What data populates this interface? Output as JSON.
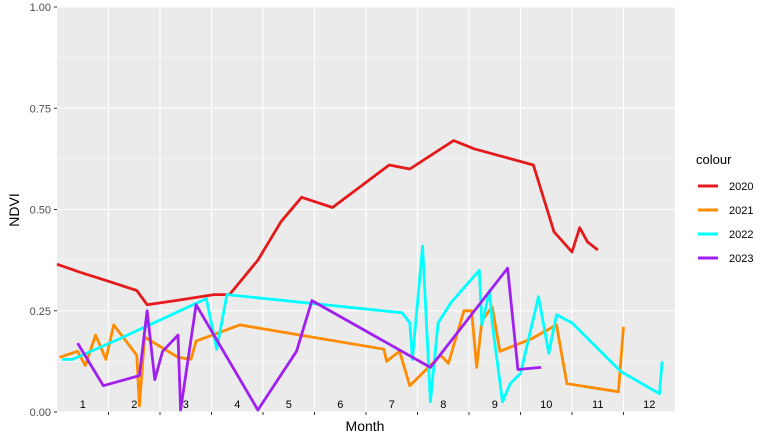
{
  "chart_data": {
    "type": "line",
    "xlabel": "Month",
    "ylabel": "NDVI",
    "xlim": [
      0,
      12
    ],
    "ylim": [
      0,
      1
    ],
    "y_ticks": [
      "0.00",
      "0.25",
      "0.50",
      "0.75",
      "1.00"
    ],
    "y_tick_values": [
      0,
      0.25,
      0.5,
      0.75,
      1.0
    ],
    "x_category_labels": [
      "1",
      "2",
      "3",
      "4",
      "5",
      "6",
      "7",
      "8",
      "9",
      "10",
      "11",
      "12"
    ],
    "grid": true,
    "background": "#EBEBEB",
    "legend": {
      "title": "colour",
      "position": "right"
    },
    "series": [
      {
        "name": "2020",
        "color": "#E41A1C",
        "points": [
          [
            0.0,
            0.365
          ],
          [
            0.45,
            0.345
          ],
          [
            0.95,
            0.325
          ],
          [
            1.55,
            0.3
          ],
          [
            1.75,
            0.265
          ],
          [
            2.3,
            0.275
          ],
          [
            3.05,
            0.29
          ],
          [
            3.35,
            0.29
          ],
          [
            3.9,
            0.375
          ],
          [
            4.35,
            0.47
          ],
          [
            4.75,
            0.53
          ],
          [
            5.35,
            0.505
          ],
          [
            6.45,
            0.61
          ],
          [
            6.85,
            0.6
          ],
          [
            7.7,
            0.67
          ],
          [
            8.1,
            0.65
          ],
          [
            9.25,
            0.61
          ],
          [
            9.65,
            0.445
          ],
          [
            10.0,
            0.395
          ],
          [
            10.15,
            0.455
          ],
          [
            10.3,
            0.42
          ],
          [
            10.5,
            0.4
          ]
        ]
      },
      {
        "name": "2021",
        "color": "#FF8C00",
        "points": [
          [
            0.05,
            0.135
          ],
          [
            0.4,
            0.15
          ],
          [
            0.55,
            0.115
          ],
          [
            0.75,
            0.19
          ],
          [
            0.95,
            0.13
          ],
          [
            1.1,
            0.215
          ],
          [
            1.55,
            0.14
          ],
          [
            1.6,
            0.015
          ],
          [
            1.7,
            0.185
          ],
          [
            2.35,
            0.135
          ],
          [
            2.6,
            0.13
          ],
          [
            2.7,
            0.175
          ],
          [
            3.55,
            0.215
          ],
          [
            6.35,
            0.155
          ],
          [
            6.4,
            0.125
          ],
          [
            6.65,
            0.15
          ],
          [
            6.85,
            0.065
          ],
          [
            7.45,
            0.14
          ],
          [
            7.6,
            0.12
          ],
          [
            7.9,
            0.25
          ],
          [
            8.05,
            0.25
          ],
          [
            8.15,
            0.11
          ],
          [
            8.25,
            0.225
          ],
          [
            8.45,
            0.26
          ],
          [
            8.6,
            0.15
          ],
          [
            9.2,
            0.18
          ],
          [
            9.7,
            0.215
          ],
          [
            9.9,
            0.07
          ],
          [
            10.9,
            0.05
          ],
          [
            11.0,
            0.21
          ]
        ]
      },
      {
        "name": "2022",
        "color": "#00FFFF",
        "points": [
          [
            0.1,
            0.13
          ],
          [
            0.3,
            0.13
          ],
          [
            1.2,
            0.18
          ],
          [
            2.9,
            0.28
          ],
          [
            3.1,
            0.155
          ],
          [
            3.3,
            0.29
          ],
          [
            6.7,
            0.245
          ],
          [
            6.85,
            0.22
          ],
          [
            6.9,
            0.13
          ],
          [
            7.1,
            0.41
          ],
          [
            7.25,
            0.025
          ],
          [
            7.4,
            0.22
          ],
          [
            7.65,
            0.27
          ],
          [
            8.2,
            0.35
          ],
          [
            8.25,
            0.215
          ],
          [
            8.4,
            0.3
          ],
          [
            8.45,
            0.22
          ],
          [
            8.65,
            0.025
          ],
          [
            8.8,
            0.07
          ],
          [
            9.0,
            0.095
          ],
          [
            9.35,
            0.285
          ],
          [
            9.55,
            0.145
          ],
          [
            9.7,
            0.24
          ],
          [
            10.0,
            0.22
          ],
          [
            10.95,
            0.1
          ],
          [
            11.7,
            0.045
          ],
          [
            11.75,
            0.125
          ]
        ]
      },
      {
        "name": "2023",
        "color": "#A020F0",
        "points": [
          [
            0.4,
            0.17
          ],
          [
            0.9,
            0.065
          ],
          [
            1.6,
            0.09
          ],
          [
            1.75,
            0.25
          ],
          [
            1.9,
            0.08
          ],
          [
            2.05,
            0.15
          ],
          [
            2.35,
            0.19
          ],
          [
            2.4,
            0.005
          ],
          [
            2.7,
            0.265
          ],
          [
            3.9,
            0.005
          ],
          [
            4.65,
            0.15
          ],
          [
            4.95,
            0.275
          ],
          [
            7.25,
            0.11
          ],
          [
            8.75,
            0.355
          ],
          [
            8.95,
            0.105
          ],
          [
            9.4,
            0.11
          ]
        ]
      }
    ]
  }
}
